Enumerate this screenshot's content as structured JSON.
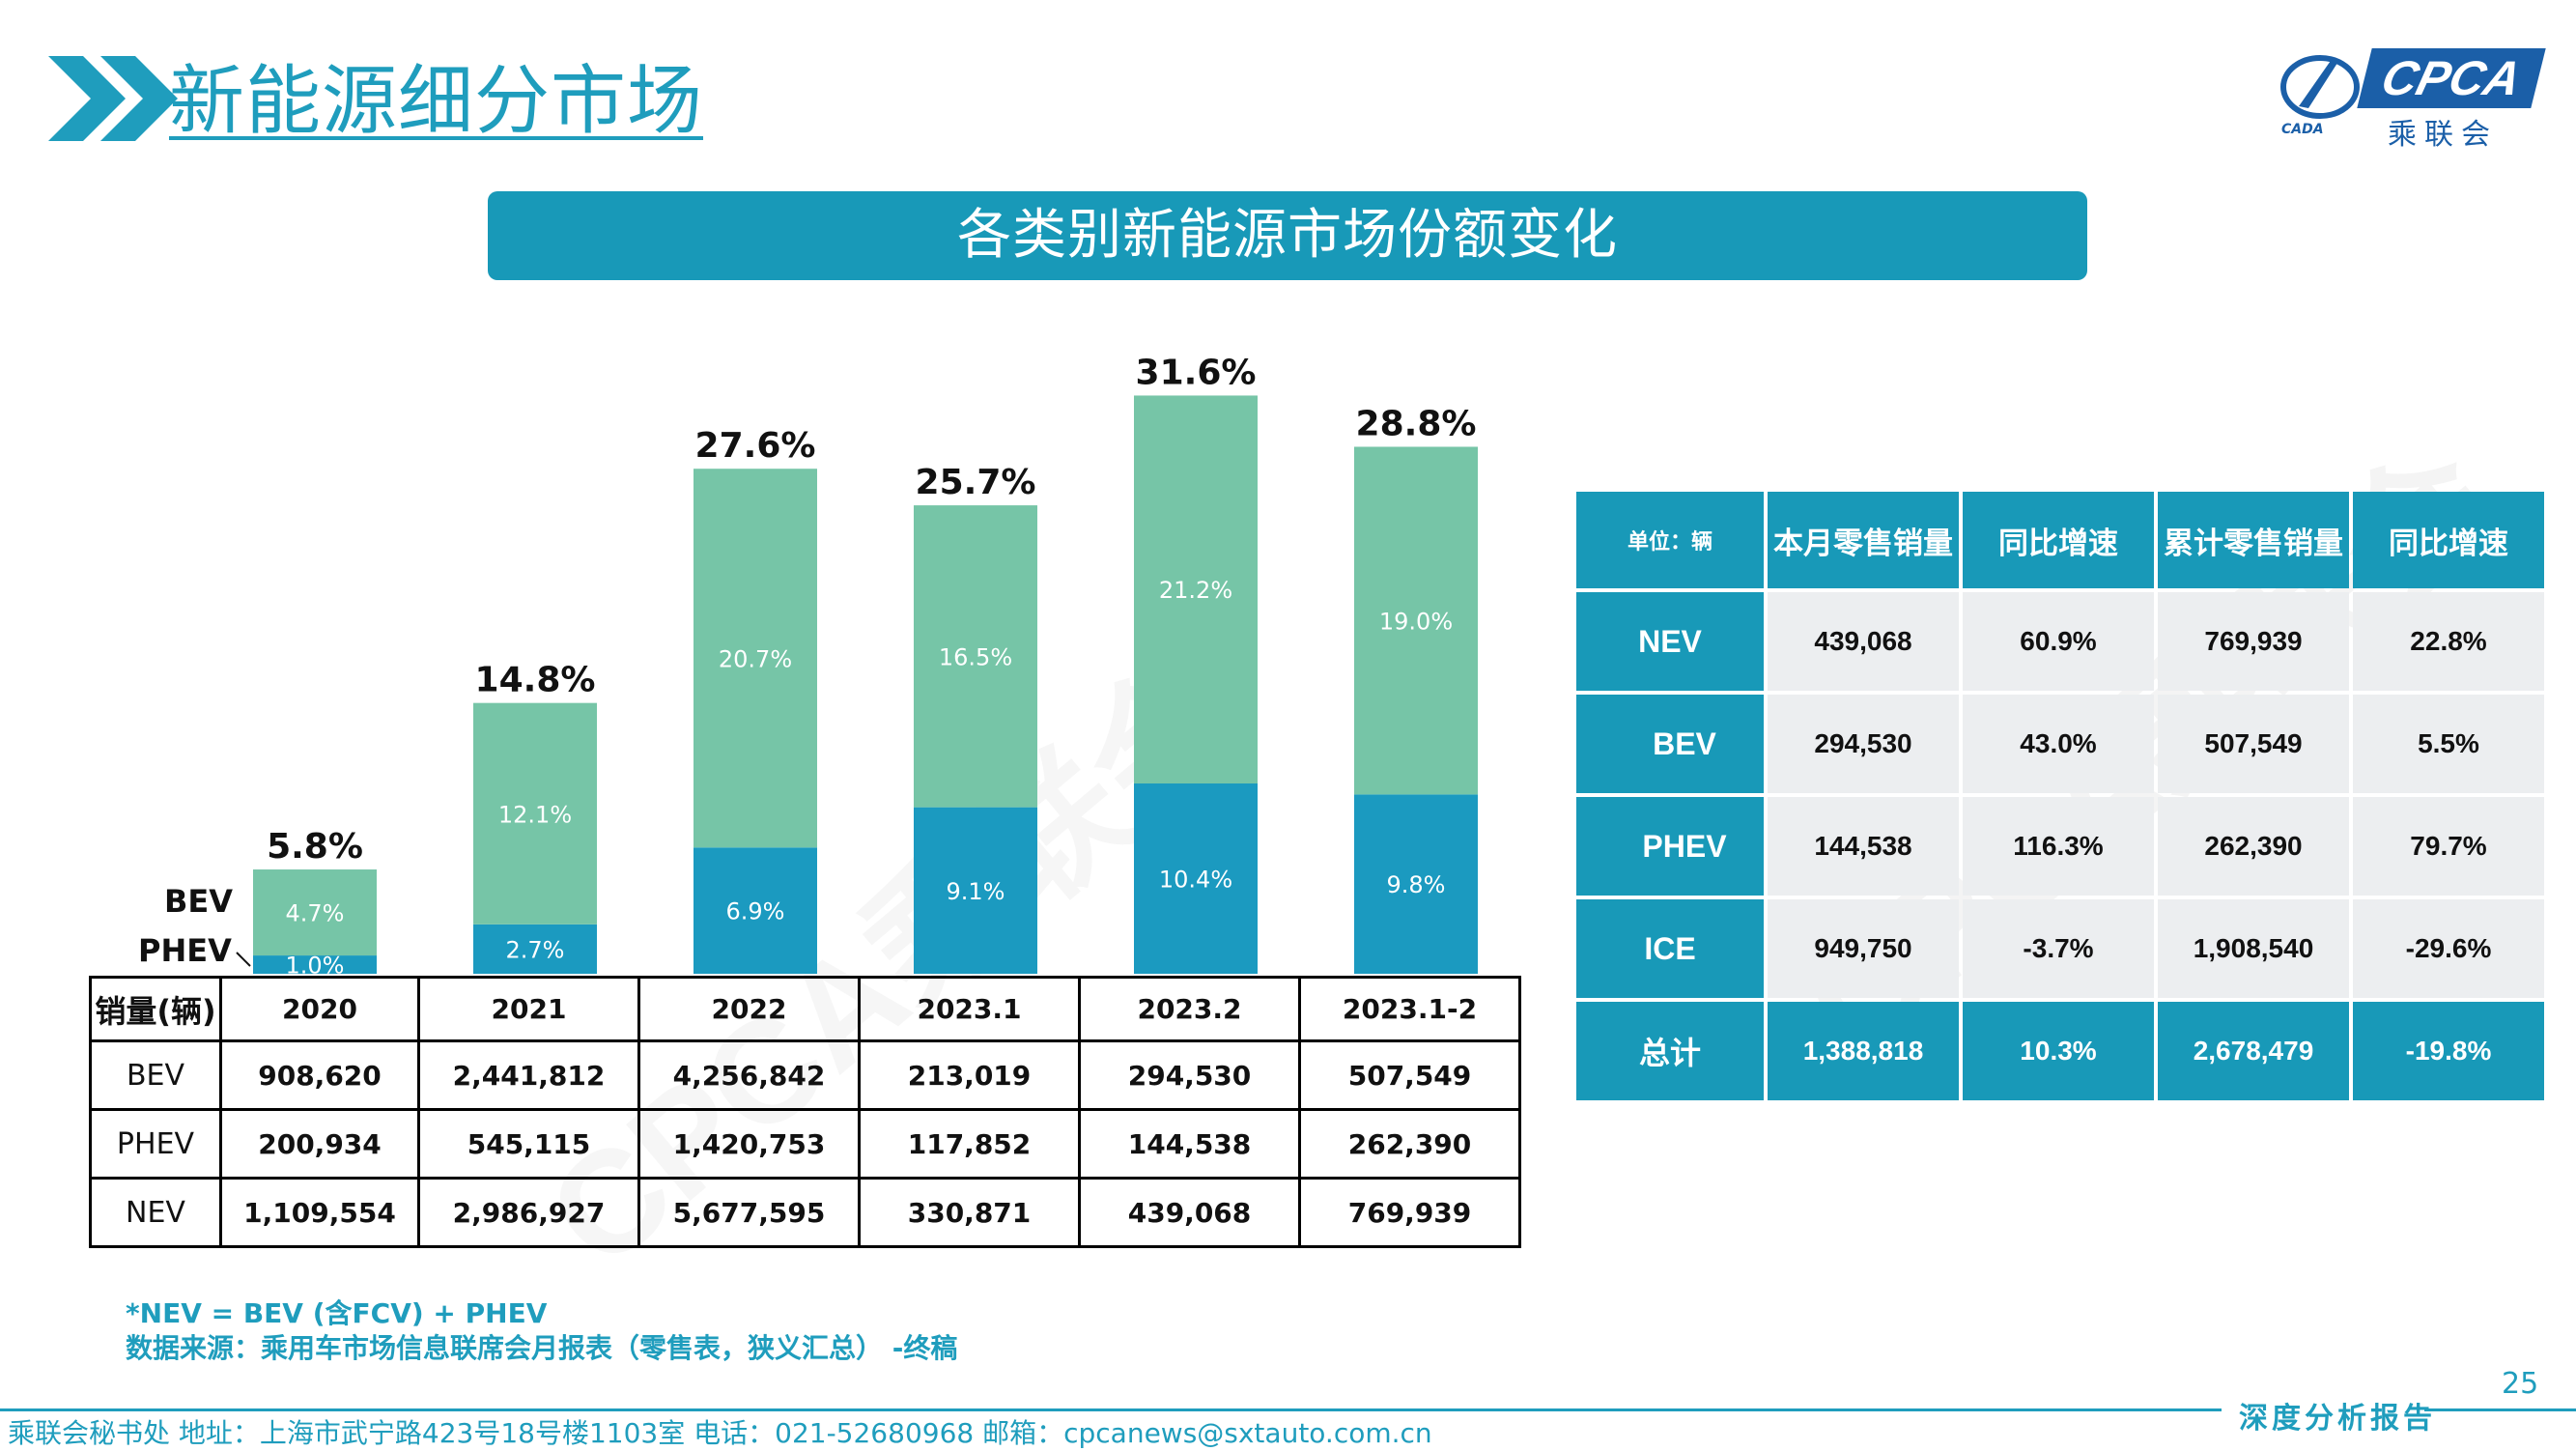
{
  "header": {
    "title": "新能源细分市场",
    "banner": "各类别新能源市场份额变化",
    "logo_text": "CPCA",
    "logo_cn": "乘联会",
    "logo_sub": "CADA"
  },
  "chart_data": {
    "type": "bar",
    "stacked": true,
    "categories": [
      "2020",
      "2021",
      "2022",
      "2023.1",
      "2023.2",
      "2023.1-2"
    ],
    "series": [
      {
        "name": "PHEV",
        "values": [
          1.0,
          2.7,
          6.9,
          9.1,
          10.4,
          9.8
        ],
        "labels": [
          "1.0%",
          "2.7%",
          "6.9%",
          "9.1%",
          "10.4%",
          "9.8%"
        ],
        "color": "#1b9ac0"
      },
      {
        "name": "BEV",
        "values": [
          4.7,
          12.1,
          20.7,
          16.5,
          21.2,
          19.0
        ],
        "labels": [
          "4.7%",
          "12.1%",
          "20.7%",
          "16.5%",
          "21.2%",
          "19.0%"
        ],
        "color": "#76c5a7"
      }
    ],
    "totals": [
      5.8,
      14.8,
      27.6,
      25.7,
      31.6,
      28.8
    ],
    "total_labels": [
      "5.8%",
      "14.8%",
      "27.6%",
      "25.7%",
      "31.6%",
      "28.8%"
    ],
    "ylim": [
      0,
      32.5
    ],
    "legend": [
      "BEV",
      "PHEV"
    ]
  },
  "data_table": {
    "corner": "销量(辆)",
    "columns": [
      "2020",
      "2021",
      "2022",
      "2023.1",
      "2023.2",
      "2023.1-2"
    ],
    "rows": [
      {
        "label": "BEV",
        "values": [
          "908,620",
          "2,441,812",
          "4,256,842",
          "213,019",
          "294,530",
          "507,549"
        ]
      },
      {
        "label": "PHEV",
        "values": [
          "200,934",
          "545,115",
          "1,420,753",
          "117,852",
          "144,538",
          "262,390"
        ]
      },
      {
        "label": "NEV",
        "values": [
          "1,109,554",
          "2,986,927",
          "5,677,595",
          "330,871",
          "439,068",
          "769,939"
        ]
      }
    ]
  },
  "right_table": {
    "headers": [
      "单位：辆",
      "本月零售销量",
      "同比增速",
      "累计零售销量",
      "同比增速"
    ],
    "rows": [
      {
        "label": "NEV",
        "values": [
          "439,068",
          "60.9%",
          "769,939",
          "22.8%"
        ]
      },
      {
        "label": "BEV",
        "values": [
          "294,530",
          "43.0%",
          "507,549",
          "5.5%"
        ]
      },
      {
        "label": "PHEV",
        "values": [
          "144,538",
          "116.3%",
          "262,390",
          "79.7%"
        ]
      },
      {
        "label": "ICE",
        "values": [
          "949,750",
          "-3.7%",
          "1,908,540",
          "-29.6%"
        ]
      },
      {
        "label": "总计",
        "values": [
          "1,388,818",
          "10.3%",
          "2,678,479",
          "-19.8%"
        ]
      }
    ]
  },
  "notes": {
    "nev_def": "*NEV = BEV (含FCV) + PHEV",
    "source": "数据来源：乘用车市场信息联席会月报表（零售表，狭义汇总） -终稿"
  },
  "watermark": "CPCA乘联会",
  "page_number": "25",
  "footer": {
    "contact": "乘联会秘书处   地址：上海市武宁路423号18号楼1103室   电话：021-52680968   邮箱：cpcanews@sxtauto.com.cn",
    "report": "深度分析报告"
  }
}
